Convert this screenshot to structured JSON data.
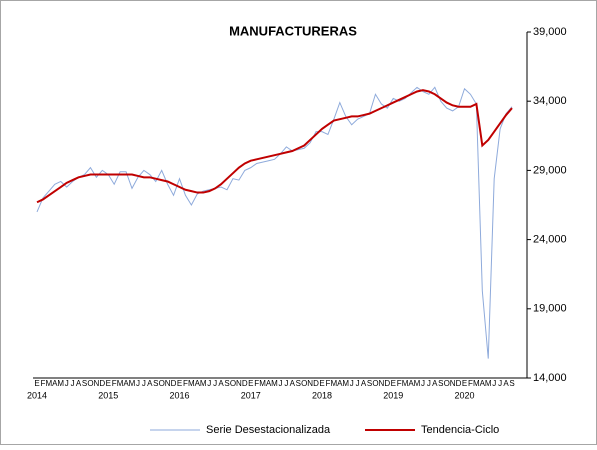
{
  "chart_data": {
    "type": "line",
    "title": "MANUFACTURERAS",
    "categories": [
      "E",
      "F",
      "M",
      "A",
      "M",
      "J",
      "J",
      "A",
      "S",
      "O",
      "N",
      "D",
      "E",
      "F",
      "M",
      "A",
      "M",
      "J",
      "J",
      "A",
      "S",
      "O",
      "N",
      "D",
      "E",
      "F",
      "M",
      "A",
      "M",
      "J",
      "J",
      "A",
      "S",
      "O",
      "N",
      "D",
      "E",
      "F",
      "M",
      "A",
      "M",
      "J",
      "J",
      "A",
      "S",
      "O",
      "N",
      "D",
      "E",
      "F",
      "M",
      "A",
      "M",
      "J",
      "J",
      "A",
      "S",
      "O",
      "N",
      "D",
      "E",
      "F",
      "M",
      "A",
      "M",
      "J",
      "J",
      "A",
      "S",
      "O",
      "N",
      "D",
      "E",
      "F",
      "M",
      "A",
      "M",
      "J",
      "J",
      "A",
      "S"
    ],
    "years": [
      "2014",
      null,
      null,
      null,
      null,
      null,
      null,
      null,
      null,
      null,
      null,
      null,
      "2015",
      null,
      null,
      null,
      null,
      null,
      null,
      null,
      null,
      null,
      null,
      null,
      "2016",
      null,
      null,
      null,
      null,
      null,
      null,
      null,
      null,
      null,
      null,
      null,
      "2017",
      null,
      null,
      null,
      null,
      null,
      null,
      null,
      null,
      null,
      null,
      null,
      "2018",
      null,
      null,
      null,
      null,
      null,
      null,
      null,
      null,
      null,
      null,
      null,
      "2019",
      null,
      null,
      null,
      null,
      null,
      null,
      null,
      null,
      null,
      null,
      null,
      "2020",
      null,
      null,
      null,
      null,
      null,
      null,
      null,
      null
    ],
    "series": [
      {
        "name": "Serie Desestacionalizada",
        "color": "#8eaadb",
        "values": [
          26000,
          27000,
          27500,
          28000,
          28200,
          27800,
          28200,
          28500,
          28700,
          29200,
          28500,
          29000,
          28700,
          28000,
          28900,
          28900,
          27700,
          28500,
          29000,
          28700,
          28200,
          29000,
          28000,
          27200,
          28400,
          27200,
          26500,
          27300,
          27500,
          27600,
          27700,
          27800,
          27600,
          28400,
          28300,
          29000,
          29200,
          29500,
          29600,
          29700,
          29800,
          30200,
          30700,
          30400,
          30500,
          30600,
          31000,
          31800,
          31800,
          31600,
          32700,
          33900,
          32900,
          32300,
          32700,
          32900,
          33100,
          34500,
          33800,
          33500,
          34200,
          34000,
          34200,
          34600,
          35000,
          34700,
          34500,
          35000,
          34000,
          33500,
          33300,
          33600,
          34900,
          34500,
          33800,
          20300,
          15400,
          28400,
          32000,
          33100,
          33600
        ]
      },
      {
        "name": "Tendencia-Ciclo",
        "color": "#c00000",
        "values": [
          26700,
          26900,
          27200,
          27500,
          27800,
          28100,
          28300,
          28500,
          28600,
          28700,
          28700,
          28700,
          28700,
          28700,
          28700,
          28700,
          28700,
          28600,
          28500,
          28500,
          28400,
          28300,
          28200,
          28000,
          27800,
          27600,
          27500,
          27400,
          27400,
          27500,
          27700,
          28000,
          28400,
          28800,
          29200,
          29500,
          29700,
          29800,
          29900,
          30000,
          30100,
          30200,
          30300,
          30400,
          30600,
          30800,
          31200,
          31600,
          32000,
          32300,
          32600,
          32700,
          32800,
          32900,
          32900,
          33000,
          33100,
          33300,
          33500,
          33700,
          33900,
          34100,
          34300,
          34500,
          34700,
          34800,
          34700,
          34500,
          34200,
          33900,
          33700,
          33600,
          33600,
          33600,
          33800,
          30800,
          31200,
          31800,
          32400,
          33000,
          33500
        ]
      }
    ],
    "ylim": [
      14000,
      39000
    ],
    "yticks": [
      {
        "value": 14000,
        "label": "14,000"
      },
      {
        "value": 19000,
        "label": "19,000"
      },
      {
        "value": 24000,
        "label": "24,000"
      },
      {
        "value": 29000,
        "label": "29,000"
      },
      {
        "value": 34000,
        "label": "34,000"
      },
      {
        "value": 39000,
        "label": "39,000"
      }
    ]
  }
}
